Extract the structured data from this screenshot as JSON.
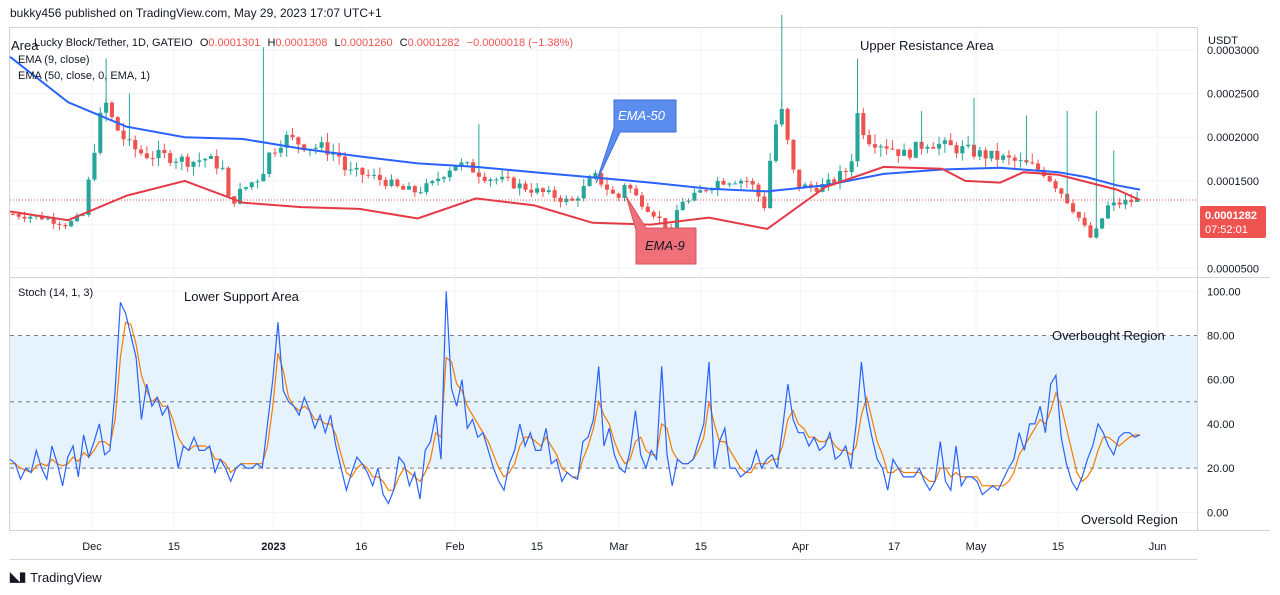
{
  "header": {
    "publish_line": "bukky456 published on TradingView.com, May 29, 2023 17:07 UTC+1"
  },
  "footer": {
    "brand": "TradingView"
  },
  "chart_data": [
    {
      "type": "candlestick",
      "panel": "price",
      "symbol_line": {
        "name": "Lucky Block/Tether, 1D, GATEIO",
        "open_label": "O",
        "open": "0.0001301",
        "high_label": "H",
        "high": "0.0001308",
        "low_label": "L",
        "low": "0.0001260",
        "close_label": "C",
        "close": "0.0001282",
        "change": "−0.0000018 (−1.38%)"
      },
      "corner_label": "Area",
      "indicators": [
        "EMA (9, close)",
        "EMA (50, close, 0, EMA, 1)"
      ],
      "currency": "USDT",
      "y_ticks": [
        "0.0003000",
        "0.0002500",
        "0.0002000",
        "0.0001500",
        "0.0001000",
        "0.0000500"
      ],
      "y_tick_values": [
        0.0003,
        0.00025,
        0.0002,
        0.00015,
        0.0001,
        5e-05
      ],
      "ylim": [
        4e-05,
        0.000325
      ],
      "last_price_label": "0.0001282",
      "last_price": 0.0001282,
      "countdown": "07:52:01",
      "annotations": {
        "upper_resistance": "Upper Resistance Area",
        "ema50_callout": "EMA-50",
        "ema9_callout": "EMA-9"
      },
      "colors": {
        "up": "#26a69a",
        "down": "#ef5350",
        "ema9": "#e53945",
        "ema50": "#2962ff",
        "callout_ema50": "#5b8def",
        "callout_ema9": "#f0707a"
      },
      "start_date": "2022-11-17",
      "end_date": "2023-05-29",
      "ema9_path": [
        [
          0,
          0.000115
        ],
        [
          10,
          0.000105
        ],
        [
          20,
          0.000133
        ],
        [
          30,
          0.00015
        ],
        [
          40,
          0.000125
        ],
        [
          50,
          0.00012
        ],
        [
          60,
          0.000118
        ],
        [
          70,
          0.000107
        ],
        [
          80,
          0.00013
        ],
        [
          90,
          0.000122
        ],
        [
          100,
          0.000102
        ],
        [
          110,
          0.0001
        ],
        [
          120,
          0.000108
        ],
        [
          130,
          9.5e-05
        ],
        [
          140,
          0.000143
        ],
        [
          150,
          0.000166
        ],
        [
          160,
          0.000164
        ],
        [
          164,
          0.00015
        ],
        [
          170,
          0.000148
        ],
        [
          174,
          0.00016
        ],
        [
          180,
          0.000157
        ],
        [
          190,
          0.00014
        ],
        [
          194,
          0.000128
        ]
      ],
      "ema50_path": [
        [
          0,
          0.000292
        ],
        [
          10,
          0.00024
        ],
        [
          20,
          0.000212
        ],
        [
          30,
          0.0002
        ],
        [
          40,
          0.000198
        ],
        [
          50,
          0.000187
        ],
        [
          60,
          0.000178
        ],
        [
          70,
          0.00017
        ],
        [
          80,
          0.000166
        ],
        [
          90,
          0.00016
        ],
        [
          100,
          0.000154
        ],
        [
          110,
          0.000148
        ],
        [
          120,
          0.000141
        ],
        [
          130,
          0.000138
        ],
        [
          140,
          0.000145
        ],
        [
          150,
          0.000158
        ],
        [
          160,
          0.000163
        ],
        [
          170,
          0.000165
        ],
        [
          180,
          0.00016
        ],
        [
          185,
          0.000154
        ],
        [
          190,
          0.000145
        ],
        [
          194,
          0.00014
        ]
      ],
      "close_path": [
        [
          0,
          0.000112
        ],
        [
          8,
          0.000108
        ],
        [
          14,
          0.0001
        ],
        [
          18,
          0.00011
        ],
        [
          20,
          0.00016
        ],
        [
          22,
          0.000215
        ],
        [
          24,
          0.000238
        ],
        [
          26,
          0.000215
        ],
        [
          30,
          0.00019
        ],
        [
          34,
          0.00018
        ],
        [
          40,
          0.000178
        ],
        [
          46,
          0.000172
        ],
        [
          50,
          0.000176
        ],
        [
          54,
          0.000165
        ],
        [
          56,
          0.00012
        ],
        [
          58,
          0.000135
        ],
        [
          62,
          0.00015
        ],
        [
          64,
          0.000155
        ],
        [
          66,
          0.00018
        ],
        [
          70,
          0.0002
        ],
        [
          76,
          0.00019
        ],
        [
          80,
          0.000188
        ],
        [
          84,
          0.00018
        ],
        [
          86,
          0.00016
        ],
        [
          90,
          0.000158
        ],
        [
          96,
          0.00015
        ],
        [
          100,
          0.00014
        ],
        [
          104,
          0.000138
        ],
        [
          108,
          0.000145
        ],
        [
          110,
          0.000155
        ],
        [
          114,
          0.00017
        ],
        [
          118,
          0.000165
        ],
        [
          122,
          0.000155
        ],
        [
          128,
          0.000148
        ],
        [
          134,
          0.00014
        ],
        [
          140,
          0.000132
        ],
        [
          144,
          0.000125
        ],
        [
          148,
          0.000145
        ],
        [
          150,
          0.000155
        ],
        [
          152,
          0.000148
        ],
        [
          156,
          0.000128
        ],
        [
          158,
          0.00015
        ],
        [
          160,
          0.000135
        ],
        [
          166,
          0.00011
        ],
        [
          170,
          9e-05
        ],
        [
          172,
          0.00013
        ],
        [
          174,
          0.000125
        ],
        [
          178,
          0.00014
        ],
        [
          182,
          0.00015
        ],
        [
          186,
          0.000152
        ],
        [
          190,
          0.00015
        ],
        [
          194,
          0.00012
        ],
        [
          196,
          0.0002
        ],
        [
          198,
          0.000235
        ],
        [
          202,
          0.000145
        ],
        [
          206,
          0.000142
        ],
        [
          210,
          0.000145
        ],
        [
          216,
          0.000165
        ],
        [
          218,
          0.00023
        ],
        [
          220,
          0.0002
        ],
        [
          226,
          0.00019
        ],
        [
          230,
          0.00018
        ],
        [
          236,
          0.000195
        ],
        [
          240,
          0.00019
        ],
        [
          246,
          0.000185
        ],
        [
          250,
          0.00018
        ],
        [
          256,
          0.000175
        ],
        [
          262,
          0.000168
        ],
        [
          266,
          0.00016
        ],
        [
          270,
          0.00014
        ],
        [
          274,
          0.000115
        ],
        [
          278,
          8.5e-05
        ],
        [
          280,
          9.5e-05
        ],
        [
          282,
          0.00012
        ],
        [
          286,
          0.000125
        ],
        [
          290,
          0.000128
        ]
      ],
      "spikes": [
        [
          24,
          0.00029
        ],
        [
          30,
          0.00025
        ],
        [
          64,
          0.000303
        ],
        [
          120,
          0.000215
        ],
        [
          198,
          0.00034
        ],
        [
          218,
          0.00029
        ],
        [
          234,
          0.00023
        ],
        [
          248,
          0.000245
        ],
        [
          262,
          0.000225
        ],
        [
          272,
          0.00023
        ],
        [
          280,
          0.00023
        ],
        [
          284,
          0.000185
        ]
      ]
    },
    {
      "type": "line",
      "panel": "oscillator",
      "indicator_label": "Stoch (14, 1, 3)",
      "annotations": {
        "lower_support": "Lower Support Area",
        "overbought": "Overbought Region",
        "oversold": "Oversold Region"
      },
      "y_ticks": [
        "100.00",
        "80.00",
        "60.00",
        "40.00",
        "20.00",
        "0.00"
      ],
      "y_tick_values": [
        100,
        80,
        60,
        40,
        20,
        0
      ],
      "ylim": [
        -8,
        106
      ],
      "bands": {
        "upper": 80,
        "middle": 50,
        "lower": 20
      },
      "colors": {
        "k": "#2962ff",
        "d": "#f57c00",
        "band_fill": "#e6f2fc",
        "band_line": "#787b86"
      },
      "series": [
        {
          "name": "%K",
          "values": [
            24,
            22,
            15,
            20,
            18,
            28,
            20,
            15,
            30,
            22,
            12,
            25,
            30,
            16,
            35,
            25,
            32,
            40,
            26,
            28,
            55,
            95,
            90,
            80,
            70,
            42,
            58,
            48,
            52,
            44,
            48,
            35,
            20,
            30,
            28,
            34,
            28,
            28,
            30,
            18,
            24,
            20,
            14,
            20,
            22,
            20,
            20,
            22,
            20,
            40,
            60,
            86,
            55,
            50,
            48,
            44,
            52,
            46,
            38,
            44,
            36,
            44,
            30,
            20,
            10,
            18,
            25,
            22,
            18,
            12,
            20,
            8,
            4,
            10,
            25,
            22,
            12,
            18,
            6,
            28,
            32,
            44,
            24,
            100,
            56,
            48,
            60,
            38,
            42,
            34,
            36,
            28,
            20,
            14,
            10,
            22,
            28,
            40,
            30,
            36,
            28,
            28,
            38,
            22,
            24,
            14,
            18,
            16,
            15,
            32,
            34,
            42,
            66,
            30,
            38,
            26,
            20,
            18,
            28,
            46,
            26,
            20,
            28,
            24,
            66,
            26,
            12,
            24,
            22,
            22,
            24,
            32,
            40,
            68,
            20,
            32,
            38,
            20,
            20,
            16,
            18,
            20,
            28,
            20,
            24,
            26,
            20,
            38,
            58,
            42,
            36,
            36,
            30,
            34,
            28,
            30,
            36,
            24,
            26,
            30,
            20,
            40,
            68,
            46,
            34,
            24,
            20,
            10,
            24,
            20,
            16,
            16,
            16,
            20,
            14,
            10,
            14,
            32,
            14,
            10,
            30,
            12,
            16,
            16,
            14,
            8,
            10,
            12,
            10,
            15,
            20,
            24,
            36,
            28,
            40,
            40,
            48,
            36,
            58,
            62,
            34,
            22,
            14,
            10,
            16,
            24,
            30,
            40,
            36,
            30,
            26,
            34,
            36,
            36,
            34,
            35
          ]
        },
        {
          "name": "%D",
          "values": [
            22,
            22,
            20,
            19,
            18,
            21,
            22,
            21,
            24,
            22,
            21,
            22,
            25,
            23,
            27,
            25,
            28,
            32,
            32,
            30,
            42,
            70,
            86,
            85,
            76,
            62,
            55,
            50,
            52,
            48,
            48,
            42,
            34,
            30,
            28,
            30,
            30,
            30,
            29,
            24,
            24,
            22,
            18,
            20,
            22,
            22,
            22,
            22,
            22,
            30,
            48,
            72,
            64,
            52,
            48,
            46,
            48,
            46,
            42,
            42,
            40,
            40,
            35,
            26,
            18,
            16,
            20,
            22,
            20,
            16,
            16,
            14,
            10,
            10,
            16,
            20,
            18,
            16,
            14,
            18,
            24,
            36,
            34,
            70,
            68,
            58,
            55,
            48,
            44,
            40,
            36,
            32,
            26,
            20,
            16,
            18,
            22,
            30,
            34,
            34,
            32,
            30,
            34,
            30,
            26,
            20,
            18,
            16,
            16,
            24,
            30,
            38,
            50,
            44,
            40,
            32,
            26,
            22,
            24,
            32,
            34,
            28,
            26,
            26,
            40,
            38,
            28,
            24,
            22,
            22,
            24,
            28,
            34,
            50,
            40,
            32,
            32,
            28,
            24,
            20,
            18,
            18,
            22,
            22,
            22,
            24,
            24,
            30,
            42,
            46,
            40,
            38,
            34,
            34,
            32,
            32,
            34,
            30,
            28,
            28,
            26,
            30,
            44,
            52,
            42,
            32,
            26,
            18,
            18,
            20,
            18,
            18,
            18,
            18,
            16,
            14,
            14,
            20,
            20,
            16,
            18,
            16,
            16,
            16,
            16,
            12,
            12,
            12,
            12,
            12,
            14,
            18,
            26,
            30,
            34,
            38,
            42,
            40,
            46,
            54,
            48,
            38,
            28,
            18,
            14,
            16,
            20,
            28,
            34,
            34,
            32,
            30,
            32,
            34,
            35,
            35
          ]
        }
      ]
    }
  ],
  "x_axis": {
    "ticks": [
      {
        "label": "Dec",
        "date": "2022-12-01"
      },
      {
        "label": "15",
        "date": "2022-12-15"
      },
      {
        "label": "2023",
        "date": "2023-01-01"
      },
      {
        "label": "16",
        "date": "2023-01-16"
      },
      {
        "label": "Feb",
        "date": "2023-02-01"
      },
      {
        "label": "15",
        "date": "2023-02-15"
      },
      {
        "label": "Mar",
        "date": "2023-03-01"
      },
      {
        "label": "15",
        "date": "2023-03-15"
      },
      {
        "label": "Apr",
        "date": "2023-04-01"
      },
      {
        "label": "17",
        "date": "2023-04-17"
      },
      {
        "label": "May",
        "date": "2023-05-01"
      },
      {
        "label": "15",
        "date": "2023-05-15"
      },
      {
        "label": "Jun",
        "date": "2023-06-01"
      }
    ],
    "bold": [
      "2023"
    ]
  }
}
